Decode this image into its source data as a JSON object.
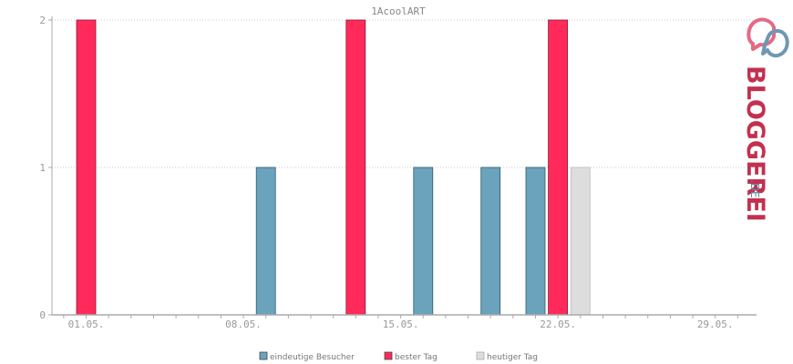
{
  "chart_data": {
    "type": "bar",
    "title": "1AcoolART",
    "x_tick_labels": [
      "01.05.",
      "08.05.",
      "15.05.",
      "22.05.",
      "29.05."
    ],
    "y_tick_labels": [
      "0",
      "1",
      "2"
    ],
    "ylim": [
      0,
      2
    ],
    "grid": true,
    "legend_position": "bottom",
    "series": [
      {
        "name": "eindeutige Besucher",
        "color": "#6aa3bb",
        "points": [
          {
            "date": "09.05.",
            "value": 1
          },
          {
            "date": "16.05.",
            "value": 1
          },
          {
            "date": "19.05.",
            "value": 1
          },
          {
            "date": "21.05.",
            "value": 1
          }
        ]
      },
      {
        "name": "bester Tag",
        "color": "#ff2a5a",
        "points": [
          {
            "date": "01.05.",
            "value": 2
          },
          {
            "date": "13.05.",
            "value": 2
          },
          {
            "date": "22.05.",
            "value": 2
          }
        ]
      },
      {
        "name": "heutiger Tag",
        "color": "#dddddd",
        "points": [
          {
            "date": "23.05.",
            "value": 1
          }
        ]
      }
    ]
  },
  "branding": {
    "name_main": "BLOGGEREI",
    "name_suffix": ".DE",
    "colors": {
      "main": "#c2314f",
      "suffix": "#5e8ba5",
      "logo_pink": "#e56a85",
      "logo_blue": "#6d98b3"
    }
  },
  "colors": {
    "axis": "#aaaaaa",
    "grid": "#cccccc"
  }
}
